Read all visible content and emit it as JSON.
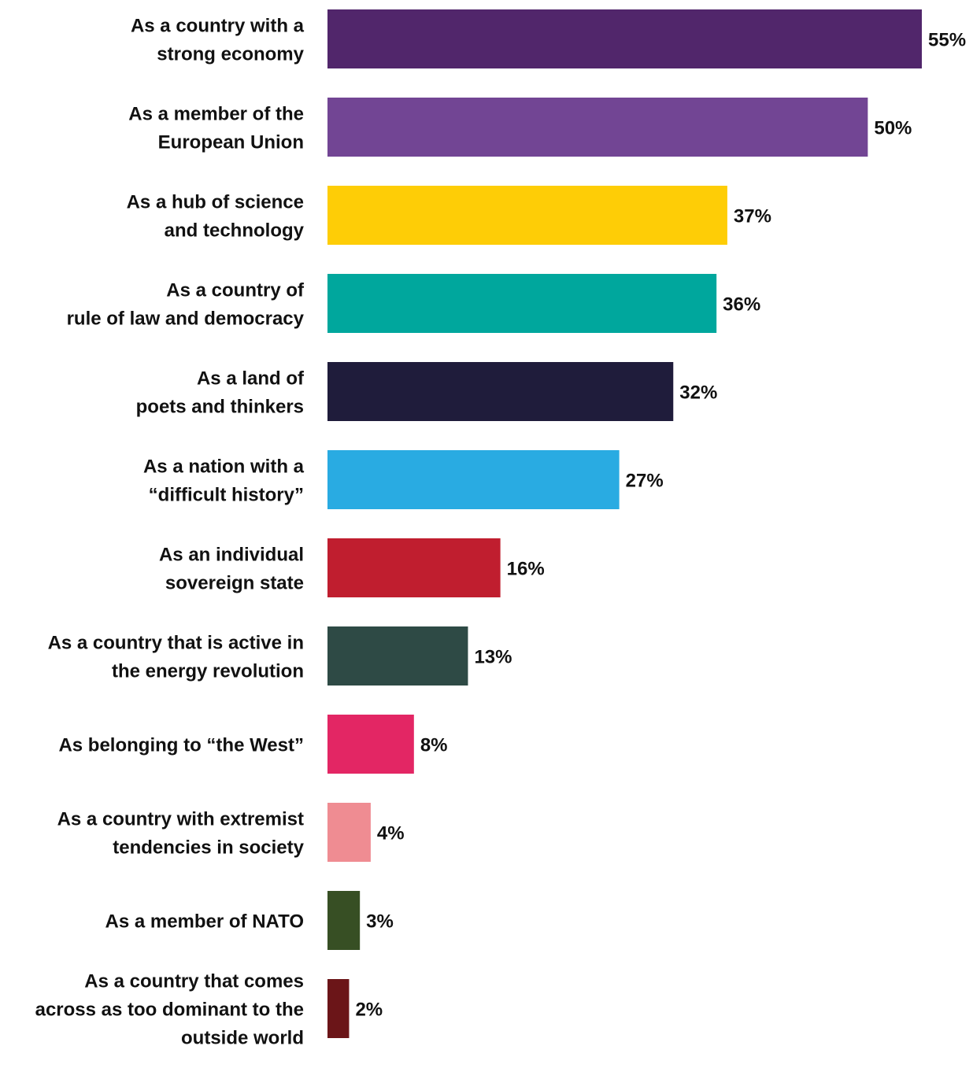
{
  "chart_data": {
    "type": "bar",
    "orientation": "horizontal",
    "title": "",
    "xlabel": "",
    "ylabel": "",
    "value_suffix": "%",
    "grid": false,
    "legend": "none",
    "categories": [
      [
        "As a country with a",
        "strong economy"
      ],
      [
        "As a member of the",
        "European Union"
      ],
      [
        "As a hub of science",
        "and technology"
      ],
      [
        "As a country of",
        "rule of law and democracy"
      ],
      [
        "As a land of",
        "poets and thinkers"
      ],
      [
        "As a nation with a",
        "“difficult history”"
      ],
      [
        "As an individual",
        "sovereign state"
      ],
      [
        "As a country that is active in",
        "the energy revolution"
      ],
      [
        "As belonging to “the West”"
      ],
      [
        "As a country with extremist",
        "tendencies in society"
      ],
      [
        "As a member of NATO"
      ],
      [
        "As a country that comes",
        "across as too dominant to the",
        "outside world"
      ]
    ],
    "values": [
      55,
      50,
      37,
      36,
      32,
      27,
      16,
      13,
      8,
      4,
      3,
      2
    ],
    "value_labels": [
      "55%",
      "50%",
      "37%",
      "36%",
      "32%",
      "27%",
      "16%",
      "13%",
      "8%",
      "4%",
      "3%",
      "2%"
    ],
    "colors": [
      "#51266b",
      "#724594",
      "#fecd06",
      "#00a79d",
      "#1f1c3b",
      "#29abe2",
      "#c01e2f",
      "#2e4a45",
      "#e32664",
      "#ef8c92",
      "#374f24",
      "#6b1518"
    ],
    "xlim": [
      0,
      55
    ]
  }
}
